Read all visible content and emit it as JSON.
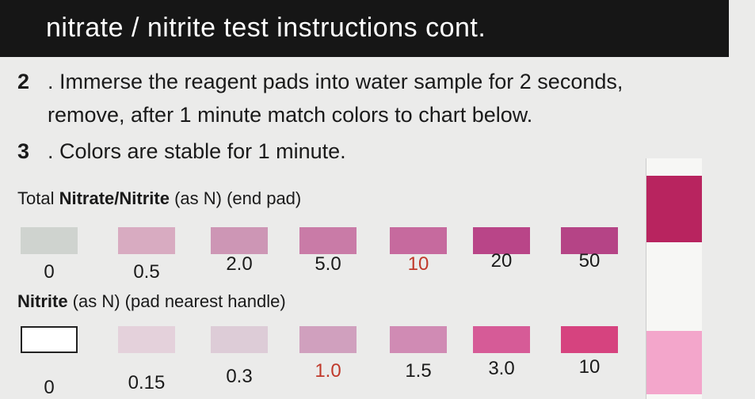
{
  "header": {
    "title": "nitrate / nitrite test instructions cont."
  },
  "steps": [
    {
      "number": "2",
      "lines": [
        "Immerse the reagent pads into water sample for 2 seconds,",
        "remove, after 1 minute match colors to chart below."
      ]
    },
    {
      "number": "3",
      "lines": [
        "Colors are stable for 1 minute."
      ]
    }
  ],
  "scales": [
    {
      "title_plain": "Total ",
      "title_bold": "Nitrate/Nitrite",
      "title_rest": " (as N) (end pad)",
      "levels": [
        {
          "label": "0",
          "color": "#cfd3cf"
        },
        {
          "label": "0.5",
          "color": "#d8abc1"
        },
        {
          "label": "2.0",
          "color": "#cd96b5"
        },
        {
          "label": "5.0",
          "color": "#c97ba7"
        },
        {
          "label": "10",
          "color": "#c66a9e",
          "label_color": "#c0392b"
        },
        {
          "label": "20",
          "color": "#b94588"
        },
        {
          "label": "50",
          "color": "#b54486"
        }
      ]
    },
    {
      "title_plain": "",
      "title_bold": "Nitrite",
      "title_rest": " (as N) (pad nearest handle)",
      "levels": [
        {
          "label": "0",
          "color": "#ffffff",
          "border": "#222222"
        },
        {
          "label": "0.15",
          "color": "#e4d1db"
        },
        {
          "label": "0.3",
          "color": "#ddccd7"
        },
        {
          "label": "1.0",
          "color": "#d0a0be",
          "label_color": "#c0392b"
        },
        {
          "label": "1.5",
          "color": "#d08bb4"
        },
        {
          "label": "3.0",
          "color": "#d65b97"
        },
        {
          "label": "10",
          "color": "#d6437f"
        }
      ]
    }
  ]
}
